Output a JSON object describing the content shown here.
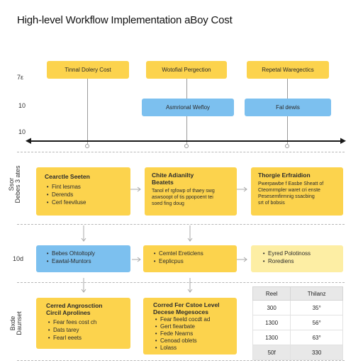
{
  "title": "High-level Workflow Implementation aBoy Cost",
  "y_labels": {
    "a": "7ε",
    "b": "10",
    "c": "10",
    "d": "Ssor\nDebes 3 ates",
    "e": "10d",
    "f": "Bxde\nDaunset"
  },
  "top_row": {
    "box1": "Tinnal Dolery Cost",
    "box2": "Wotofial Pergection",
    "box3": "Repetal Waregectics"
  },
  "blue_row": {
    "box1": "Asmrional Wefloy",
    "box2": "Fal dewis"
  },
  "row2": {
    "box1": {
      "head": "Cearctle Seeten",
      "items": [
        "Fint lesmas",
        "Derends",
        "Cerl feeviluse"
      ]
    },
    "box2": {
      "head": "Chite Adianilty\nBeatets",
      "body": "Tanol ef rgfowp of thaey swg\naswsoopt of tis ppopoent tei\nsoed fing doug"
    },
    "box3": {
      "head": "Thorgie Erfraidion",
      "body": "Pwerpawbe f Easbe Sheatt of\nCteomrmpler waret cri enste\nPesesemfirmnig ssacbing\nsrt of bobsis"
    }
  },
  "row3": {
    "box1": {
      "items": [
        "Bebes Ohtoltoply",
        "Eawtal-Muntors"
      ]
    },
    "box2": {
      "items": [
        "Cemtel Ereticlens",
        "Eeplicpus"
      ]
    },
    "box3": {
      "items": [
        "Eyred Polotinoss",
        "Rorediens"
      ]
    }
  },
  "row4": {
    "box1": {
      "head": "Cerred Angrosction\nCircil Aprolines",
      "items": [
        "Fear fees cost ch",
        "Dats tarey",
        "Fearl eeets"
      ]
    },
    "box2": {
      "head": "Corred Fer Cstoe Level\nDecese Megesoces",
      "items": [
        "Fear fieeld cocdt ad",
        "Gert fiearbate",
        "Fede Nearns",
        "Cenoad oblets",
        "Lolass"
      ]
    }
  },
  "table": {
    "headers": [
      "Reel",
      "Thilanz"
    ],
    "rows": [
      [
        "300",
        "35°"
      ],
      [
        "1300",
        "56°"
      ],
      [
        "1300",
        "63°"
      ],
      [
        "50f",
        "330"
      ]
    ]
  },
  "colors": {
    "yellow": "#fcd34d",
    "pale_yellow": "#fdeea4",
    "blue": "#7cc0ef"
  }
}
